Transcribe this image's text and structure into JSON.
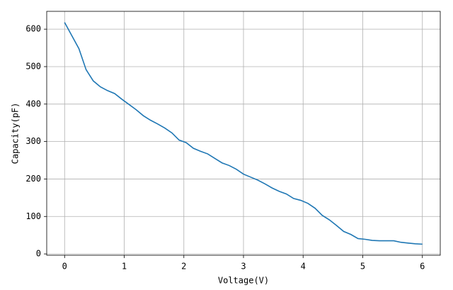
{
  "chart_data": {
    "type": "line",
    "x_label": "Voltage(V)",
    "y_label": "Capacity(pF)",
    "x": [
      0,
      0.12,
      0.24,
      0.36,
      0.48,
      0.6,
      0.72,
      0.84,
      0.96,
      1.08,
      1.2,
      1.32,
      1.44,
      1.56,
      1.68,
      1.8,
      1.92,
      2.04,
      2.16,
      2.28,
      2.4,
      2.52,
      2.64,
      2.76,
      2.88,
      3.0,
      3.12,
      3.24,
      3.36,
      3.48,
      3.6,
      3.72,
      3.84,
      3.96,
      4.08,
      4.2,
      4.32,
      4.44,
      4.56,
      4.68,
      4.8,
      4.92,
      5.04,
      5.16,
      5.28,
      5.4,
      5.52,
      5.64,
      5.76,
      5.88,
      6.0
    ],
    "series": [
      {
        "color": "#1f77b4",
        "values": [
          618,
          583,
          548,
          492,
          462,
          446,
          436,
          428,
          413,
          399,
          385,
          369,
          357,
          347,
          336,
          323,
          304,
          297,
          282,
          274,
          267,
          255,
          243,
          236,
          226,
          213,
          205,
          197,
          187,
          176,
          167,
          160,
          148,
          143,
          135,
          122,
          103,
          91,
          76,
          60,
          52,
          41,
          39,
          36,
          35,
          35,
          35,
          31,
          29,
          27,
          26
        ]
      }
    ],
    "xlim": [
      -0.3,
      6.3
    ],
    "xticks": [
      0,
      1,
      2,
      3,
      4,
      5,
      6
    ],
    "ylim": [
      -3.6,
      647.6
    ],
    "yticks": [
      0,
      100,
      200,
      300,
      400,
      500,
      600
    ],
    "grid": true
  }
}
